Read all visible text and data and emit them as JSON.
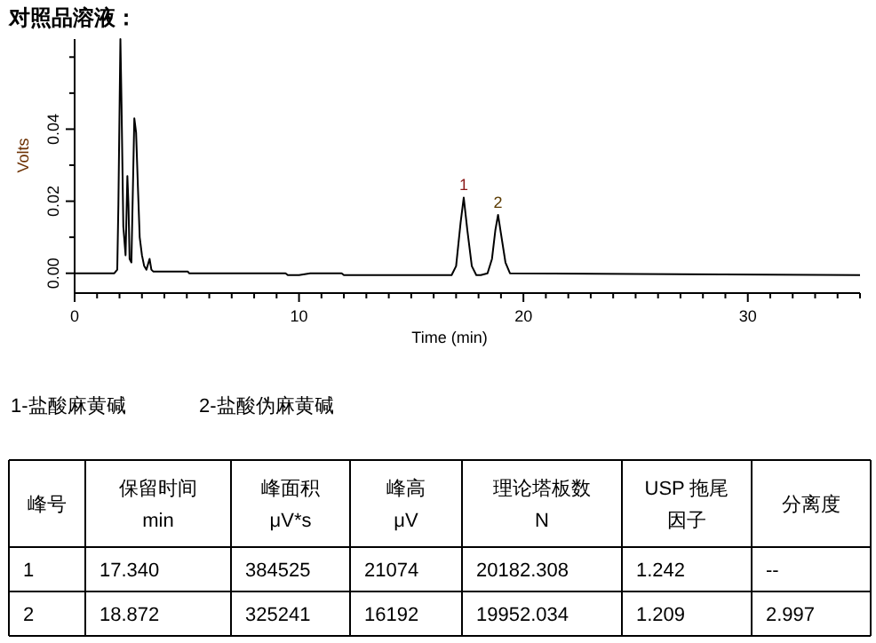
{
  "chart_data": {
    "type": "line",
    "title": "对照品溶液：",
    "xlabel": "Time (min)",
    "ylabel": "Volts",
    "xlim": [
      0,
      35
    ],
    "ylim": [
      -0.0055,
      0.065
    ],
    "xticks": [
      0,
      {
        "value": 1,
        "label": null
      },
      {
        "value": 2,
        "label": null
      },
      {
        "value": 3,
        "label": null
      },
      {
        "value": 4,
        "label": null
      },
      {
        "value": 5,
        "label": null
      },
      {
        "value": 6,
        "label": null
      },
      {
        "value": 7,
        "label": null
      },
      {
        "value": 8,
        "label": null
      },
      {
        "value": 9,
        "label": null
      },
      10,
      {
        "value": 11,
        "label": null
      },
      {
        "value": 12,
        "label": null
      },
      {
        "value": 13,
        "label": null
      },
      {
        "value": 14,
        "label": null
      },
      {
        "value": 15,
        "label": null
      },
      {
        "value": 16,
        "label": null
      },
      {
        "value": 17,
        "label": null
      },
      {
        "value": 18,
        "label": null
      },
      {
        "value": 19,
        "label": null
      },
      20,
      {
        "value": 21,
        "label": null
      },
      {
        "value": 22,
        "label": null
      },
      {
        "value": 23,
        "label": null
      },
      {
        "value": 24,
        "label": null
      },
      {
        "value": 25,
        "label": null
      },
      {
        "value": 26,
        "label": null
      },
      {
        "value": 27,
        "label": null
      },
      {
        "value": 28,
        "label": null
      },
      {
        "value": 29,
        "label": null
      },
      30,
      {
        "value": 31,
        "label": null
      },
      {
        "value": 32,
        "label": null
      },
      {
        "value": 33,
        "label": null
      },
      {
        "value": 34,
        "label": null
      },
      {
        "value": 35,
        "label": null
      }
    ],
    "yticks": [
      {
        "value": 0,
        "label": "0.00"
      },
      {
        "value": 0.01,
        "label": null
      },
      {
        "value": 0.02,
        "label": "0.02"
      },
      {
        "value": 0.03,
        "label": null
      },
      {
        "value": 0.04,
        "label": "0.04"
      },
      {
        "value": 0.05,
        "label": null
      },
      {
        "value": 0.06,
        "label": null
      }
    ],
    "grid": false,
    "marker": "none",
    "line_style": "solid",
    "series": [
      {
        "color": "#000000",
        "x": [
          0,
          1.77,
          1.9,
          1.95,
          2.04,
          2.09,
          2.17,
          2.27,
          2.35,
          2.4,
          2.45,
          2.53,
          2.66,
          2.74,
          2.82,
          2.9,
          3.0,
          3.1,
          3.2,
          3.34,
          3.42,
          3.5,
          5.04,
          5.1,
          9.4,
          9.5,
          10.0,
          10.5,
          11.9,
          12.0,
          12.1,
          16.8,
          17.0,
          17.2,
          17.34,
          17.5,
          17.7,
          17.9,
          18.1,
          18.4,
          18.6,
          18.75,
          18.87,
          19.0,
          19.2,
          19.4,
          35
        ],
        "values": [
          0,
          0,
          0.001,
          0.019,
          0.065,
          0.047,
          0.013,
          0.005,
          0.027,
          0.019,
          0.004,
          0.003,
          0.043,
          0.039,
          0.024,
          0.01,
          0.005,
          0.002,
          0.001,
          0.004,
          0.001,
          0.0005,
          0.0005,
          0,
          0,
          -0.0005,
          -0.0005,
          0,
          0,
          -0.0005,
          -0.0005,
          -0.0005,
          0.002,
          0.014,
          0.021,
          0.012,
          0.002,
          -0.0005,
          -0.0005,
          0,
          0.004,
          0.012,
          0.0162,
          0.011,
          0.003,
          0,
          -0.0005
        ]
      }
    ],
    "annotations": [
      {
        "text": "1",
        "x": 17.34,
        "y": 0.021
      },
      {
        "text": "2",
        "x": 18.87,
        "y": 0.0162
      },
      "1-盐酸麻黄碱",
      "2-盐酸伪麻黄碱",
      "峰号",
      "保留时间\nmin",
      "峰面积\nμV*s",
      "峰高\nμV",
      "理论塔板数\nN",
      "USP 拖尾因子",
      "分离度",
      "1",
      "17.340",
      "384525",
      "21074",
      "20182.308",
      "1.242",
      "--",
      "2",
      "18.872",
      "325241",
      "16192",
      "19952.034",
      "1.209",
      "2.997"
    ]
  }
}
